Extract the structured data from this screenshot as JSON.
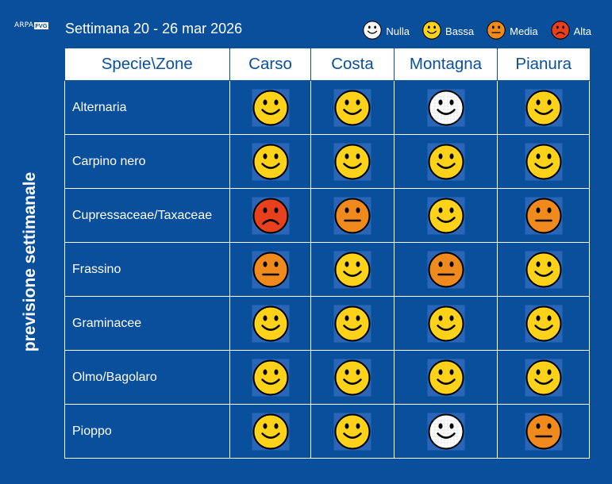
{
  "header": {
    "logo_text": "ARPA",
    "logo_badge": "FVG",
    "week": "Settimana 20 - 26 mar 2026"
  },
  "legend": [
    {
      "key": "nulla",
      "label": "Nulla",
      "icon": "white-smiley-icon"
    },
    {
      "key": "bassa",
      "label": "Bassa",
      "icon": "yellow-smiley-icon"
    },
    {
      "key": "media",
      "label": "Media",
      "icon": "orange-neutral-face-icon"
    },
    {
      "key": "alta",
      "label": "Alta",
      "icon": "red-frown-face-icon"
    }
  ],
  "side_label": "previsione settimanale",
  "table": {
    "headers": [
      "Specie\\Zone",
      "Carso",
      "Costa",
      "Montagna",
      "Pianura"
    ],
    "rows": [
      {
        "species": "Alternaria",
        "levels": [
          "bassa",
          "bassa",
          "nulla",
          "bassa"
        ]
      },
      {
        "species": "Carpino nero",
        "levels": [
          "bassa",
          "bassa",
          "bassa",
          "bassa"
        ]
      },
      {
        "species": "Cupressaceae/Taxaceae",
        "levels": [
          "alta",
          "media",
          "bassa",
          "media"
        ]
      },
      {
        "species": "Frassino",
        "levels": [
          "media",
          "bassa",
          "media",
          "bassa"
        ]
      },
      {
        "species": "Graminacee",
        "levels": [
          "bassa",
          "bassa",
          "bassa",
          "bassa"
        ]
      },
      {
        "species": "Olmo/Bagolaro",
        "levels": [
          "bassa",
          "bassa",
          "bassa",
          "bassa"
        ]
      },
      {
        "species": "Pioppo",
        "levels": [
          "bassa",
          "bassa",
          "nulla",
          "media"
        ]
      }
    ]
  },
  "colors": {
    "background": "#0a4f9c",
    "cell_backdrop": "#2a66b8",
    "nulla": "#ffffff",
    "bassa": "#ffd21a",
    "media": "#f08a1c",
    "alta": "#e8401c"
  }
}
